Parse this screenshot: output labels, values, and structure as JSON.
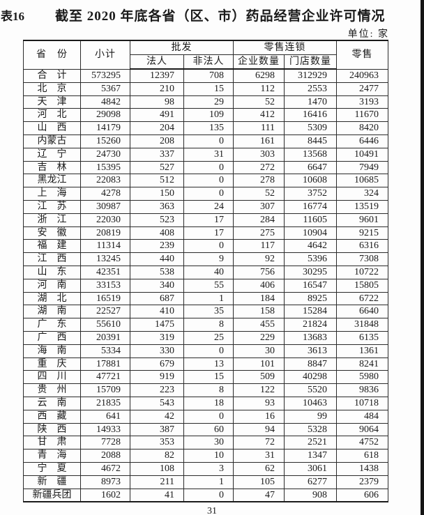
{
  "page": {
    "label": "表16",
    "title": "截至 2020 年底各省（区、市）药品经营企业许可情况",
    "unit_note": "单位: 家",
    "page_number": "31"
  },
  "colors": {
    "background": "#fdfdfd",
    "text": "#1a1a1a",
    "border": "#2a2a2a",
    "edge_bar": "#141414"
  },
  "table": {
    "headers": {
      "province": "省　份",
      "subtotal": "小计",
      "wholesale": "批发",
      "wholesale_legal": "法人",
      "wholesale_nonlegal": "非法人",
      "retail_chain": "零售连锁",
      "chain_enterprises": "企业数量",
      "chain_stores": "门店数量",
      "retail": "零售"
    },
    "rows": [
      [
        "合　计",
        573295,
        12397,
        708,
        6298,
        312929,
        240963
      ],
      [
        "北　京",
        5367,
        210,
        15,
        112,
        2553,
        2477
      ],
      [
        "天　津",
        4842,
        98,
        29,
        52,
        1470,
        3193
      ],
      [
        "河　北",
        29098,
        491,
        109,
        412,
        16416,
        11670
      ],
      [
        "山　西",
        14179,
        204,
        135,
        111,
        5309,
        8420
      ],
      [
        "内蒙古",
        15260,
        208,
        0,
        161,
        8445,
        6446
      ],
      [
        "辽　宁",
        24730,
        337,
        31,
        303,
        13568,
        10491
      ],
      [
        "吉　林",
        15395,
        527,
        0,
        272,
        6647,
        7949
      ],
      [
        "黑龙江",
        22083,
        512,
        0,
        278,
        10608,
        10685
      ],
      [
        "上　海",
        4278,
        150,
        0,
        52,
        3752,
        324
      ],
      [
        "江　苏",
        30987,
        363,
        24,
        307,
        16774,
        13519
      ],
      [
        "浙　江",
        22030,
        523,
        17,
        284,
        11605,
        9601
      ],
      [
        "安　徽",
        20819,
        408,
        17,
        275,
        10904,
        9215
      ],
      [
        "福　建",
        11314,
        239,
        0,
        117,
        4642,
        6316
      ],
      [
        "江　西",
        13245,
        440,
        9,
        92,
        5396,
        7308
      ],
      [
        "山　东",
        42351,
        538,
        40,
        756,
        30295,
        10722
      ],
      [
        "河　南",
        33153,
        340,
        55,
        406,
        16547,
        15805
      ],
      [
        "湖　北",
        16519,
        687,
        1,
        184,
        8925,
        6722
      ],
      [
        "湖　南",
        22527,
        410,
        35,
        158,
        15284,
        6640
      ],
      [
        "广　东",
        55610,
        1475,
        8,
        455,
        21824,
        31848
      ],
      [
        "广　西",
        20391,
        319,
        25,
        229,
        13683,
        6135
      ],
      [
        "海　南",
        5334,
        330,
        0,
        30,
        3613,
        1361
      ],
      [
        "重　庆",
        17881,
        679,
        13,
        101,
        8847,
        8241
      ],
      [
        "四　川",
        47721,
        919,
        15,
        509,
        40298,
        5980
      ],
      [
        "贵　州",
        15709,
        223,
        8,
        122,
        5520,
        9836
      ],
      [
        "云　南",
        21835,
        543,
        18,
        93,
        10463,
        10718
      ],
      [
        "西　藏",
        641,
        42,
        0,
        16,
        99,
        484
      ],
      [
        "陕　西",
        14933,
        387,
        60,
        94,
        5328,
        9064
      ],
      [
        "甘　肃",
        7728,
        353,
        30,
        72,
        2521,
        4752
      ],
      [
        "青　海",
        2088,
        82,
        10,
        31,
        1347,
        618
      ],
      [
        "宁　夏",
        4672,
        108,
        3,
        62,
        3061,
        1438
      ],
      [
        "新　疆",
        8973,
        211,
        1,
        105,
        6277,
        2379
      ],
      [
        "新疆兵团",
        1602,
        41,
        0,
        47,
        908,
        606
      ]
    ]
  }
}
